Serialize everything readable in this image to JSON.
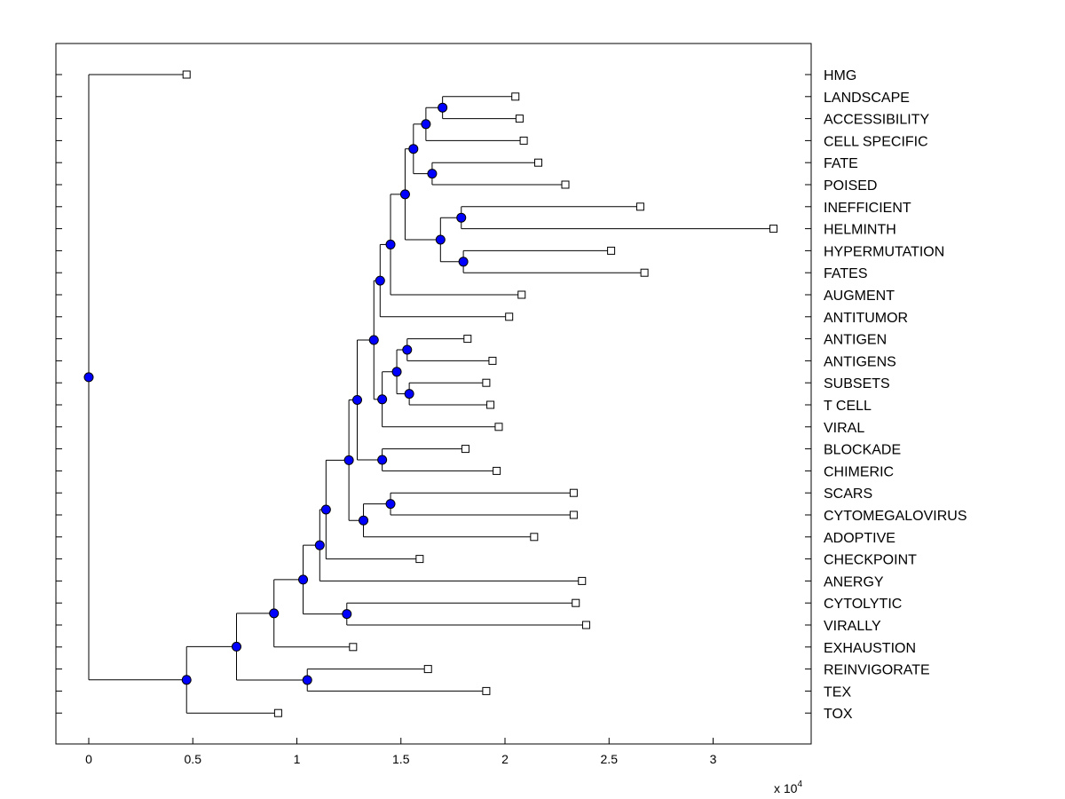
{
  "chart_data": {
    "type": "dendrogram",
    "xlabel": "",
    "ylabel": "",
    "x_scale_label": "x 10",
    "x_scale_exponent": "4",
    "xlim": [
      -0.16,
      3.45
    ],
    "xticks": [
      0,
      0.5,
      1,
      1.5,
      2,
      2.5,
      3
    ],
    "xtick_labels": [
      "0",
      "0.5",
      "1",
      "1.5",
      "2",
      "2.5",
      "3"
    ],
    "colors": {
      "node": "#0000ff",
      "node_stroke": "#000000",
      "line": "#000000",
      "leaf": "#ffffff"
    },
    "leaves": [
      {
        "label": "HMG",
        "value": 0.47
      },
      {
        "label": "LANDSCAPE",
        "value": 2.05
      },
      {
        "label": "ACCESSIBILITY",
        "value": 2.07
      },
      {
        "label": "CELL SPECIFIC",
        "value": 2.09
      },
      {
        "label": "FATE",
        "value": 2.16
      },
      {
        "label": "POISED",
        "value": 2.29
      },
      {
        "label": "INEFFICIENT",
        "value": 2.65
      },
      {
        "label": "HELMINTH",
        "value": 3.29
      },
      {
        "label": "HYPERMUTATION",
        "value": 2.51
      },
      {
        "label": "FATES",
        "value": 2.67
      },
      {
        "label": "AUGMENT",
        "value": 2.08
      },
      {
        "label": "ANTITUMOR",
        "value": 2.02
      },
      {
        "label": "ANTIGEN",
        "value": 1.82
      },
      {
        "label": "ANTIGENS",
        "value": 1.94
      },
      {
        "label": "SUBSETS",
        "value": 1.91
      },
      {
        "label": "T CELL",
        "value": 1.93
      },
      {
        "label": "VIRAL",
        "value": 1.97
      },
      {
        "label": "BLOCKADE",
        "value": 1.81
      },
      {
        "label": "CHIMERIC",
        "value": 1.96
      },
      {
        "label": "SCARS",
        "value": 2.33
      },
      {
        "label": "CYTOMEGALOVIRUS",
        "value": 2.33
      },
      {
        "label": "ADOPTIVE",
        "value": 2.14
      },
      {
        "label": "CHECKPOINT",
        "value": 1.59
      },
      {
        "label": "ANERGY",
        "value": 2.37
      },
      {
        "label": "CYTOLYTIC",
        "value": 2.34
      },
      {
        "label": "VIRALLY",
        "value": 2.39
      },
      {
        "label": "EXHAUSTION",
        "value": 1.27
      },
      {
        "label": "REINVIGORATE",
        "value": 1.63
      },
      {
        "label": "TEX",
        "value": 1.91
      },
      {
        "label": "TOX",
        "value": 0.91
      }
    ],
    "nodes": [
      {
        "id": "n1",
        "value": 1.7,
        "children": [
          "L1",
          "L2"
        ]
      },
      {
        "id": "n2",
        "value": 1.62,
        "children": [
          "n1",
          "L3"
        ]
      },
      {
        "id": "n3",
        "value": 1.65,
        "children": [
          "L4",
          "L5"
        ]
      },
      {
        "id": "n4",
        "value": 1.56,
        "children": [
          "n2",
          "n3"
        ]
      },
      {
        "id": "n5",
        "value": 1.79,
        "children": [
          "L6",
          "L7"
        ]
      },
      {
        "id": "n6",
        "value": 1.8,
        "children": [
          "L8",
          "L9"
        ]
      },
      {
        "id": "n7",
        "value": 1.69,
        "children": [
          "n5",
          "n6"
        ]
      },
      {
        "id": "n8",
        "value": 1.52,
        "children": [
          "n4",
          "n7"
        ]
      },
      {
        "id": "n9",
        "value": 1.45,
        "children": [
          "n8",
          "L10"
        ]
      },
      {
        "id": "n10",
        "value": 1.4,
        "children": [
          "n9",
          "L11"
        ]
      },
      {
        "id": "n11",
        "value": 1.53,
        "children": [
          "L12",
          "L13"
        ]
      },
      {
        "id": "n12",
        "value": 1.54,
        "children": [
          "L14",
          "L15"
        ]
      },
      {
        "id": "n13",
        "value": 1.48,
        "children": [
          "n11",
          "n12"
        ]
      },
      {
        "id": "n14",
        "value": 1.41,
        "children": [
          "n13",
          "L16"
        ]
      },
      {
        "id": "n15",
        "value": 1.37,
        "children": [
          "n10",
          "n14"
        ]
      },
      {
        "id": "n16",
        "value": 1.41,
        "children": [
          "L17",
          "L18"
        ]
      },
      {
        "id": "n17",
        "value": 1.29,
        "children": [
          "n15",
          "n16"
        ]
      },
      {
        "id": "n18",
        "value": 1.45,
        "children": [
          "L19",
          "L20"
        ]
      },
      {
        "id": "n19",
        "value": 1.32,
        "children": [
          "n18",
          "L21"
        ]
      },
      {
        "id": "n20",
        "value": 1.25,
        "children": [
          "n17",
          "n19"
        ]
      },
      {
        "id": "n21",
        "value": 1.14,
        "children": [
          "n20",
          "L22"
        ]
      },
      {
        "id": "n22",
        "value": 1.11,
        "children": [
          "n21",
          "L23"
        ]
      },
      {
        "id": "n23",
        "value": 1.24,
        "children": [
          "L24",
          "L25"
        ]
      },
      {
        "id": "n24",
        "value": 1.03,
        "children": [
          "n22",
          "n23"
        ]
      },
      {
        "id": "n25",
        "value": 0.89,
        "children": [
          "n24",
          "L26"
        ]
      },
      {
        "id": "n26",
        "value": 1.05,
        "children": [
          "L27",
          "L28"
        ]
      },
      {
        "id": "n27",
        "value": 0.71,
        "children": [
          "n25",
          "n26"
        ]
      },
      {
        "id": "n28",
        "value": 0.47,
        "children": [
          "n27",
          "L29"
        ]
      },
      {
        "id": "n29",
        "value": 0.0,
        "children": [
          "L0",
          "n28"
        ]
      }
    ]
  }
}
